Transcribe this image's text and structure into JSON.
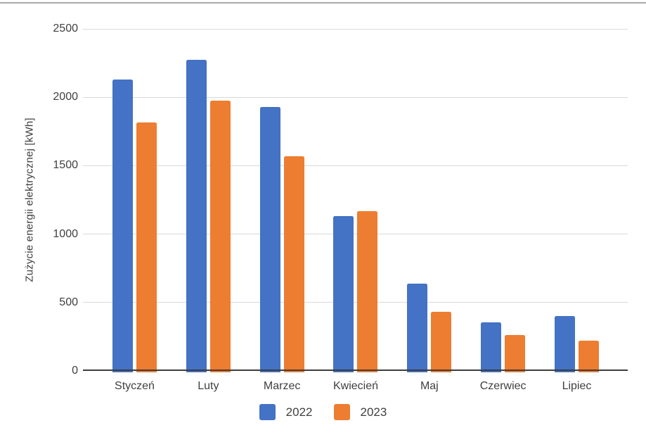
{
  "page": {
    "background": "#ffffff",
    "top_divider_color": "#a9a9a9"
  },
  "chart_data": {
    "type": "bar",
    "title": "",
    "xlabel": "",
    "ylabel": "Zużycie energii elektrycznej [kWh]",
    "categories": [
      "Styczeń",
      "Luty",
      "Marzec",
      "Kwiecień",
      "Maj",
      "Czerwiec",
      "Lipiec"
    ],
    "series": [
      {
        "name": "2022",
        "color": "#4472C4",
        "values": [
          2130,
          2275,
          1930,
          1130,
          640,
          355,
          400
        ]
      },
      {
        "name": "2023",
        "color": "#ED7D31",
        "values": [
          1815,
          1975,
          1570,
          1170,
          430,
          260,
          220
        ]
      }
    ],
    "ylim": [
      0,
      2500
    ],
    "yticks": [
      0,
      500,
      1000,
      1500,
      2000,
      2500
    ],
    "grid": true,
    "legend_position": "bottom-center",
    "colors": {
      "gridline": "#d9d9d9",
      "axis_line": "#3d3d3d",
      "tick_text": "#404040",
      "label_text": "#404040"
    }
  }
}
